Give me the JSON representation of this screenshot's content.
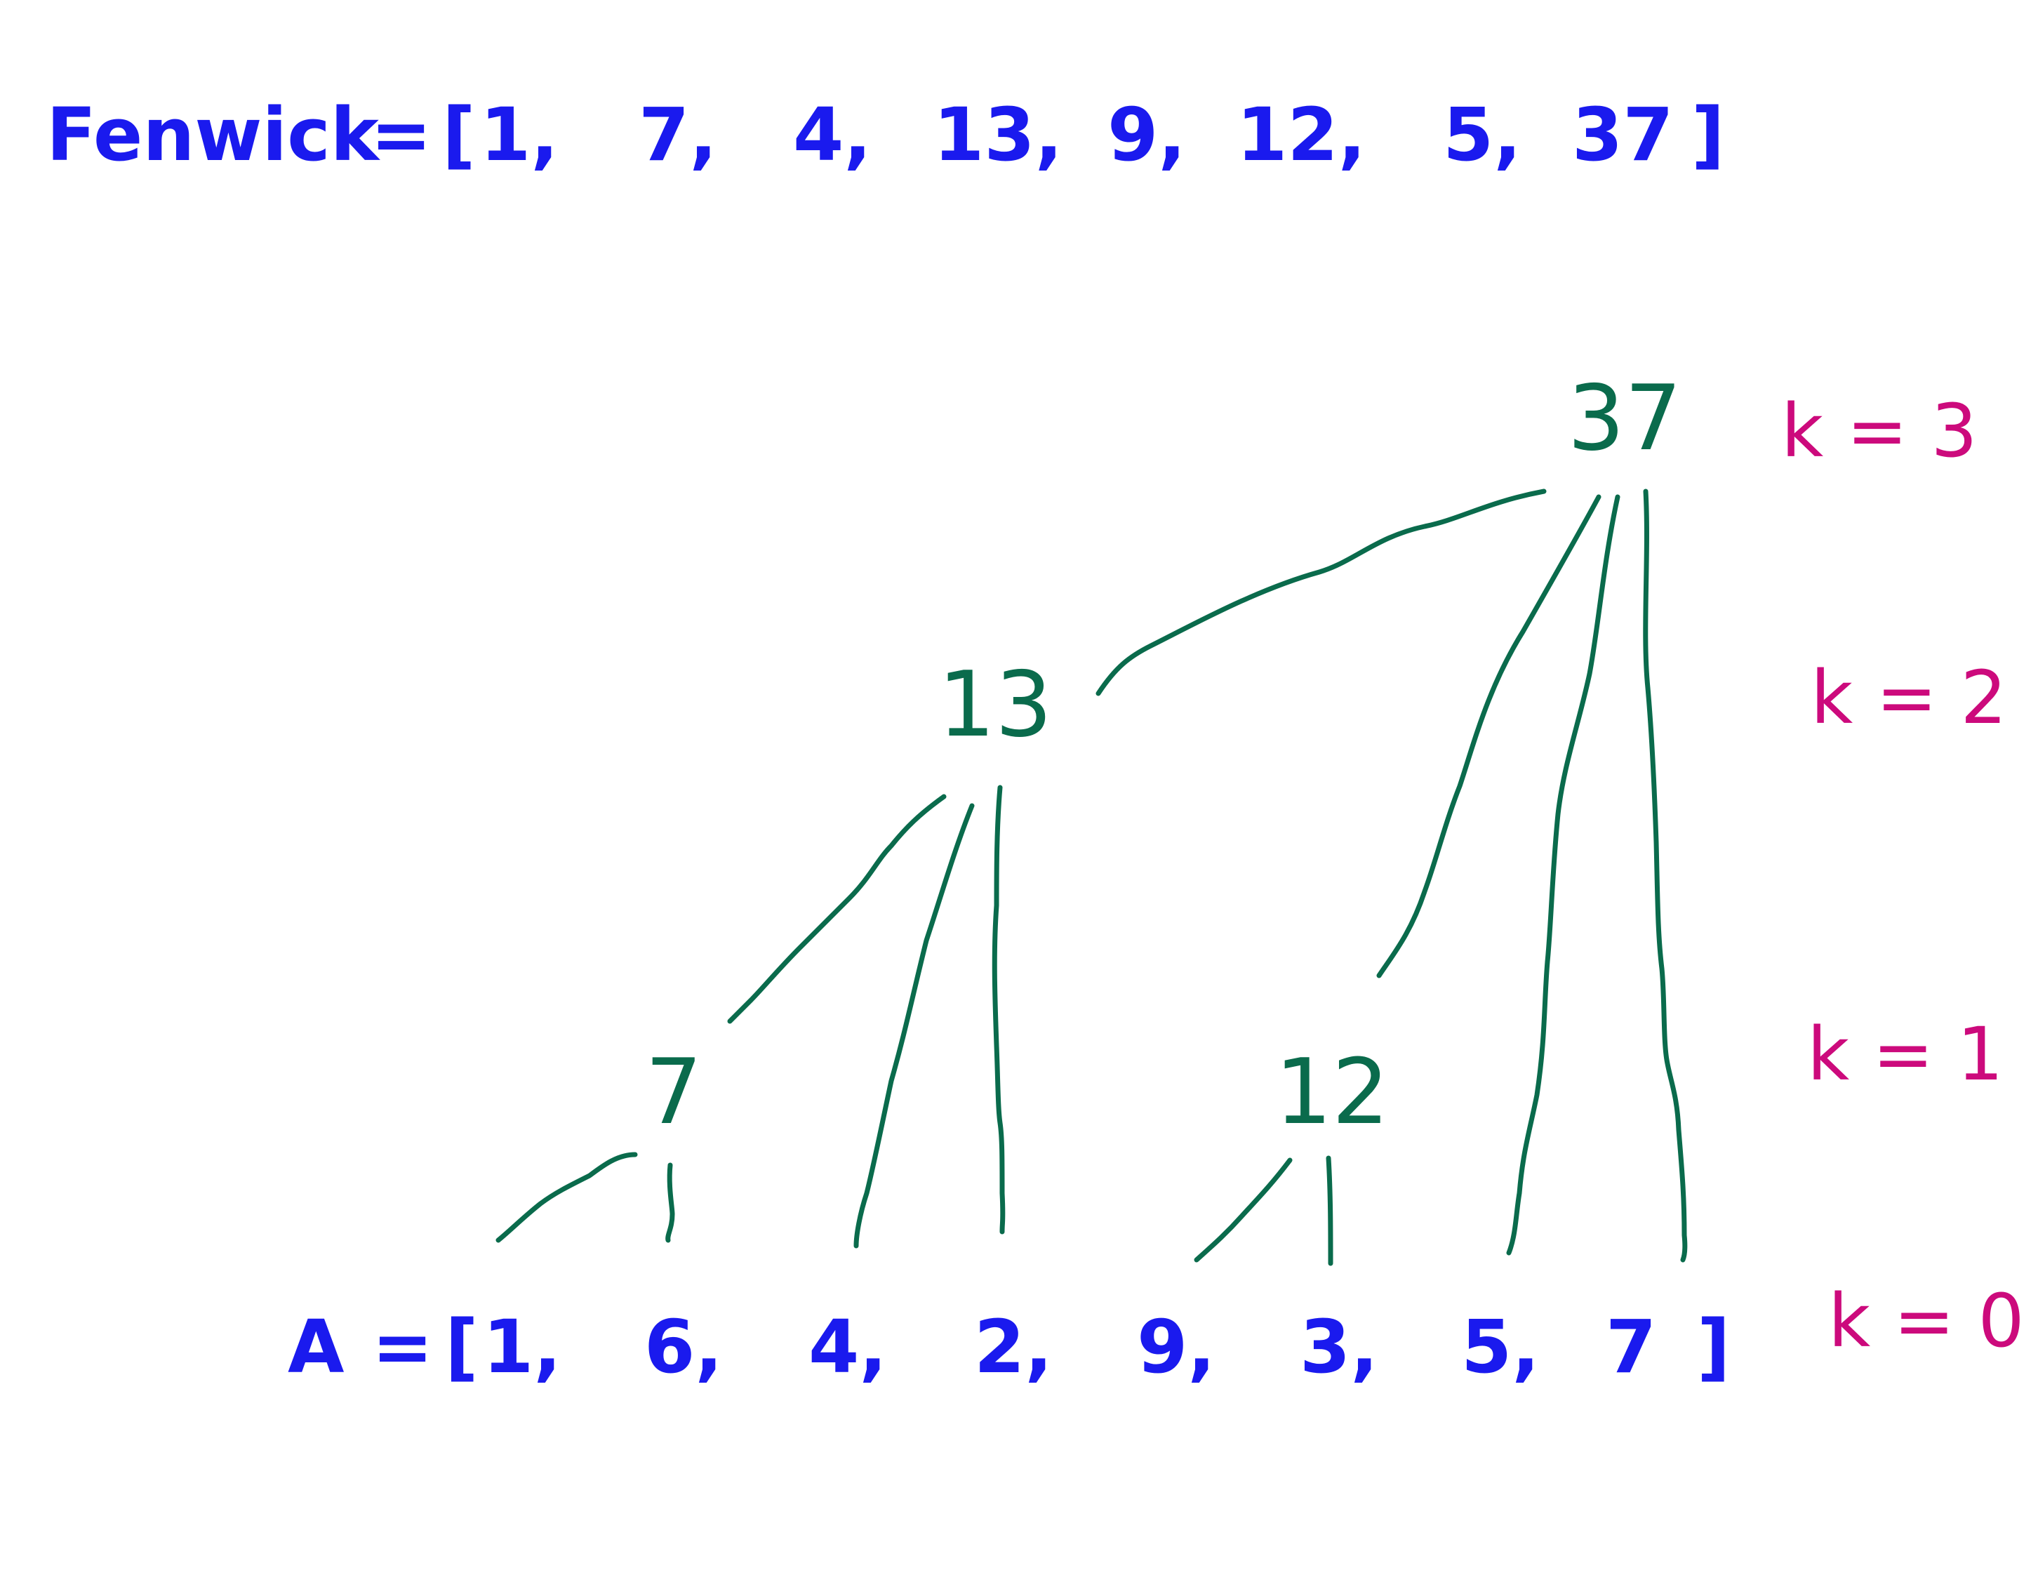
{
  "colors": {
    "arrays": "#1a1aee",
    "tree": "#0a6b4c",
    "levels": "#cc0a7c"
  },
  "fenwick": {
    "label": "Fenwick",
    "equals": "=",
    "open_bracket": "[",
    "close_bracket": "]",
    "values": [
      "1,",
      "7,",
      "4,",
      "13,",
      "9,",
      "12,",
      "5,",
      "37"
    ]
  },
  "tree": {
    "nodes": [
      "37",
      "13",
      "7",
      "12"
    ]
  },
  "levels": [
    "k = 3",
    "k = 2",
    "k = 1",
    "k = 0"
  ],
  "array_a": {
    "label": "A",
    "equals": "=",
    "open_bracket": "[",
    "close_bracket": "]",
    "values": [
      "1,",
      "6,",
      "4,",
      "2,",
      "9,",
      "3,",
      "5,",
      "7"
    ]
  }
}
